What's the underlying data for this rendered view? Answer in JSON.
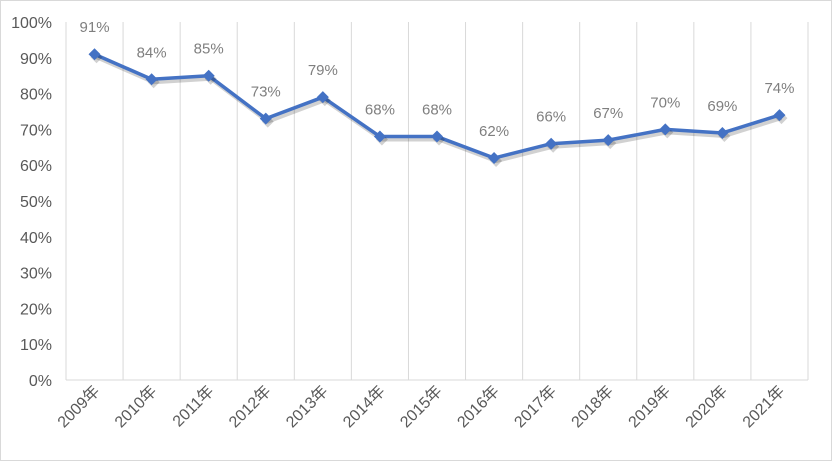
{
  "chart_data": {
    "type": "line",
    "categories": [
      "2009年",
      "2010年",
      "2011年",
      "2012年",
      "2013年",
      "2014年",
      "2015年",
      "2016年",
      "2017年",
      "2018年",
      "2019年",
      "2020年",
      "2021年"
    ],
    "series": [
      {
        "values": [
          91,
          84,
          85,
          73,
          79,
          68,
          68,
          62,
          66,
          67,
          70,
          69,
          74
        ],
        "data_labels": [
          "91%",
          "84%",
          "85%",
          "73%",
          "79%",
          "68%",
          "68%",
          "62%",
          "66%",
          "67%",
          "70%",
          "69%",
          "74%"
        ],
        "color": "#4472c4"
      }
    ],
    "ylim": [
      0,
      100
    ],
    "y_ticks": [
      "0%",
      "10%",
      "20%",
      "30%",
      "40%",
      "50%",
      "60%",
      "70%",
      "80%",
      "90%",
      "100%"
    ],
    "grid": "vertical",
    "legend": "none",
    "colors": {
      "line": "#4472c4",
      "grid": "#d9d9d9",
      "axis_text": "#595959",
      "label_text": "#7f7f7f"
    }
  }
}
